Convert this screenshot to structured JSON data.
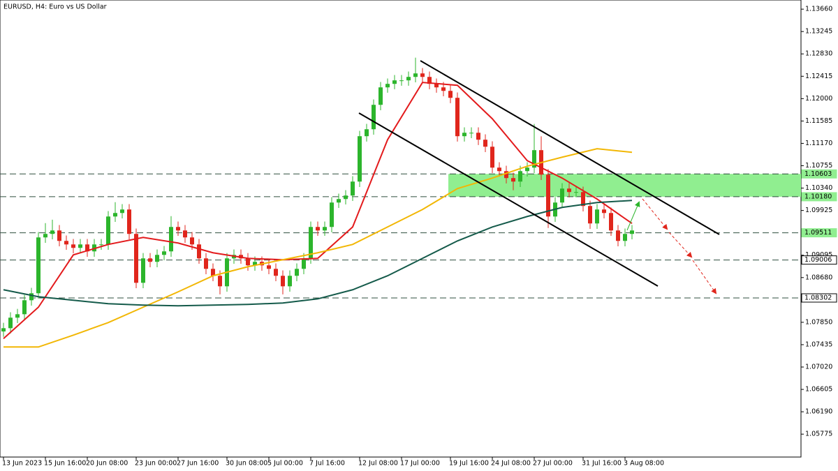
{
  "chart_data": {
    "type": "candlestick",
    "title": "EURUSD, H4:  Euro vs US Dollar",
    "categories": [
      "13 Jun 2023",
      null,
      null,
      null,
      null,
      null,
      "15 Jun 16:00",
      null,
      null,
      null,
      null,
      null,
      "20 Jun 08:00",
      null,
      null,
      null,
      null,
      null,
      null,
      "23 Jun 00:00",
      null,
      null,
      null,
      null,
      null,
      "27 Jun 16:00",
      null,
      null,
      null,
      null,
      null,
      null,
      "30 Jun 08:00",
      null,
      null,
      null,
      null,
      null,
      "5 Jul 00:00",
      null,
      null,
      null,
      null,
      null,
      "7 Jul 16:00",
      null,
      null,
      null,
      null,
      null,
      null,
      "12 Jul 08:00",
      null,
      null,
      null,
      null,
      null,
      "17 Jul 00:00",
      null,
      null,
      null,
      null,
      null,
      null,
      "19 Jul 16:00",
      null,
      null,
      null,
      null,
      null,
      "24 Jul 08:00",
      null,
      null,
      null,
      null,
      null,
      "27 Jul 00:00",
      null,
      null,
      null,
      null,
      null,
      null,
      "31 Jul 16:00",
      null,
      null,
      null,
      null,
      null,
      "3 Aug 08:00",
      null
    ],
    "ohlc": [
      [
        1.0768,
        1.07841,
        1.0758,
        1.07741
      ],
      [
        1.07741,
        1.08036,
        1.07641,
        1.07936
      ],
      [
        1.07936,
        1.081,
        1.07836,
        1.08
      ],
      [
        1.08,
        1.08359,
        1.079,
        1.08259
      ],
      [
        1.08259,
        1.08489,
        1.08159,
        1.08389
      ],
      [
        1.08389,
        1.09525,
        1.08289,
        1.09425
      ],
      [
        1.09425,
        1.0969,
        1.09325,
        1.0949
      ],
      [
        1.0949,
        1.09754,
        1.0939,
        1.09554
      ],
      [
        1.09554,
        1.09654,
        1.0926,
        1.0936
      ],
      [
        1.0936,
        1.0946,
        1.09195,
        1.09295
      ],
      [
        1.09295,
        1.09395,
        1.09131,
        1.09231
      ],
      [
        1.09231,
        1.09395,
        1.09131,
        1.09295
      ],
      [
        1.09295,
        1.09395,
        1.09066,
        1.09166
      ],
      [
        1.09166,
        1.09395,
        1.09066,
        1.09295
      ],
      [
        1.09295,
        1.09395,
        1.09195,
        1.09295
      ],
      [
        1.09295,
        1.09913,
        1.09195,
        1.09813
      ],
      [
        1.09813,
        1.10078,
        1.09713,
        1.09878
      ],
      [
        1.09878,
        1.10043,
        1.09778,
        1.09943
      ],
      [
        1.09943,
        1.10043,
        1.0939,
        1.0949
      ],
      [
        1.0949,
        1.0959,
        1.08483,
        1.08583
      ],
      [
        1.08583,
        1.09136,
        1.08483,
        1.09036
      ],
      [
        1.09036,
        1.09136,
        1.08872,
        1.08972
      ],
      [
        1.08972,
        1.09201,
        1.08872,
        1.09101
      ],
      [
        1.09101,
        1.09266,
        1.09001,
        1.09166
      ],
      [
        1.09166,
        1.09819,
        1.09066,
        1.09619
      ],
      [
        1.09619,
        1.09719,
        1.09454,
        1.09554
      ],
      [
        1.09554,
        1.09654,
        1.09325,
        1.09425
      ],
      [
        1.09425,
        1.09525,
        1.09195,
        1.09295
      ],
      [
        1.09295,
        1.09395,
        1.08936,
        1.09036
      ],
      [
        1.09036,
        1.09136,
        1.08742,
        1.08842
      ],
      [
        1.08842,
        1.08942,
        1.08613,
        1.08713
      ],
      [
        1.08713,
        1.08813,
        1.08368,
        1.08518
      ],
      [
        1.08518,
        1.09136,
        1.08418,
        1.09036
      ],
      [
        1.09036,
        1.09201,
        1.08936,
        1.09101
      ],
      [
        1.09101,
        1.09201,
        1.08936,
        1.09036
      ],
      [
        1.09036,
        1.09136,
        1.08807,
        1.08907
      ],
      [
        1.08907,
        1.09072,
        1.08807,
        1.08972
      ],
      [
        1.08972,
        1.09072,
        1.08807,
        1.08907
      ],
      [
        1.08907,
        1.09007,
        1.08742,
        1.08842
      ],
      [
        1.08842,
        1.08942,
        1.08613,
        1.08713
      ],
      [
        1.08713,
        1.08813,
        1.08368,
        1.08518
      ],
      [
        1.08518,
        1.08813,
        1.08418,
        1.08713
      ],
      [
        1.08713,
        1.08942,
        1.08613,
        1.08842
      ],
      [
        1.08842,
        1.09136,
        1.08742,
        1.09036
      ],
      [
        1.09036,
        1.09719,
        1.08936,
        1.09619
      ],
      [
        1.09619,
        1.09719,
        1.09454,
        1.09554
      ],
      [
        1.09554,
        1.09719,
        1.09454,
        1.09619
      ],
      [
        1.09619,
        1.10172,
        1.09519,
        1.10072
      ],
      [
        1.10072,
        1.10237,
        1.09972,
        1.10137
      ],
      [
        1.10137,
        1.10302,
        1.10037,
        1.10202
      ],
      [
        1.10202,
        1.10561,
        1.10102,
        1.10461
      ],
      [
        1.10461,
        1.11403,
        1.10361,
        1.11303
      ],
      [
        1.11303,
        1.11532,
        1.11203,
        1.11432
      ],
      [
        1.11432,
        1.11985,
        1.11332,
        1.11885
      ],
      [
        1.11885,
        1.12309,
        1.11785,
        1.12209
      ],
      [
        1.12209,
        1.12374,
        1.12109,
        1.12274
      ],
      [
        1.12274,
        1.12439,
        1.12174,
        1.12339
      ],
      [
        1.12339,
        1.12439,
        1.12239,
        1.12339
      ],
      [
        1.12339,
        1.12503,
        1.12239,
        1.12403
      ],
      [
        1.12403,
        1.1276,
        1.12303,
        1.12468
      ],
      [
        1.12468,
        1.12568,
        1.12303,
        1.12403
      ],
      [
        1.12403,
        1.12503,
        1.12174,
        1.12274
      ],
      [
        1.12274,
        1.12374,
        1.12109,
        1.12209
      ],
      [
        1.12209,
        1.12309,
        1.12044,
        1.12144
      ],
      [
        1.12144,
        1.12244,
        1.11915,
        1.12015
      ],
      [
        1.12015,
        1.12115,
        1.11203,
        1.11303
      ],
      [
        1.11303,
        1.11467,
        1.11203,
        1.11367
      ],
      [
        1.11367,
        1.11467,
        1.11267,
        1.11367
      ],
      [
        1.11367,
        1.11467,
        1.11138,
        1.11238
      ],
      [
        1.11238,
        1.11338,
        1.11008,
        1.11108
      ],
      [
        1.11108,
        1.11208,
        1.1062,
        1.1072
      ],
      [
        1.1072,
        1.1082,
        1.10555,
        1.10655
      ],
      [
        1.10655,
        1.10755,
        1.10426,
        1.10526
      ],
      [
        1.10526,
        1.10626,
        1.103,
        1.10461
      ],
      [
        1.10461,
        1.10755,
        1.10361,
        1.10655
      ],
      [
        1.10655,
        1.1082,
        1.10555,
        1.1072
      ],
      [
        1.1072,
        1.1153,
        1.1062,
        1.11044
      ],
      [
        1.11044,
        1.113,
        1.1049,
        1.1059
      ],
      [
        1.1059,
        1.1069,
        1.096,
        1.09813
      ],
      [
        1.09813,
        1.10172,
        1.09713,
        1.10072
      ],
      [
        1.10072,
        1.10431,
        1.09972,
        1.10331
      ],
      [
        1.10331,
        1.10431,
        1.10167,
        1.10267
      ],
      [
        1.10267,
        1.10367,
        1.10167,
        1.10267
      ],
      [
        1.10267,
        1.10367,
        1.09908,
        1.10008
      ],
      [
        1.10008,
        1.10108,
        1.09584,
        1.09684
      ],
      [
        1.09684,
        1.10043,
        1.09584,
        1.09943
      ],
      [
        1.09943,
        1.10043,
        1.09778,
        1.09878
      ],
      [
        1.09878,
        1.09978,
        1.09454,
        1.09554
      ],
      [
        1.09554,
        1.09654,
        1.0926,
        1.0936
      ],
      [
        1.0936,
        1.0959,
        1.0926,
        1.0949
      ],
      [
        1.0949,
        1.09654,
        1.0939,
        1.09554
      ]
    ],
    "up_color": "#2cb52c",
    "down_color": "#e0261c",
    "series": [
      {
        "color": "#e31a1c",
        "x": [
          0,
          5,
          10,
          15,
          20,
          25,
          30,
          35,
          40,
          45,
          50,
          55,
          60,
          65,
          70,
          75,
          80,
          85,
          90
        ],
        "values": [
          1.07547,
          1.0813,
          1.09101,
          1.09295,
          1.09425,
          1.09321,
          1.0914,
          1.09036,
          1.09011,
          1.09036,
          1.09619,
          1.11238,
          1.123,
          1.12248,
          1.11626,
          1.10849,
          1.10526,
          1.10137,
          1.09684
        ]
      },
      {
        "color": "#f2b705",
        "x": [
          0,
          5,
          10,
          15,
          20,
          25,
          30,
          35,
          40,
          45,
          50,
          55,
          60,
          65,
          70,
          75,
          80,
          85,
          90
        ],
        "values": [
          1.07392,
          1.07392,
          1.07612,
          1.07845,
          1.0813,
          1.08415,
          1.08713,
          1.08881,
          1.09011,
          1.0914,
          1.09295,
          1.09619,
          1.09943,
          1.10331,
          1.10526,
          1.10746,
          1.10914,
          1.1107,
          1.11005
        ]
      },
      {
        "color": "#145a4a",
        "x": [
          0,
          5,
          10,
          15,
          20,
          25,
          30,
          35,
          40,
          45,
          50,
          55,
          60,
          65,
          70,
          75,
          80,
          85,
          90
        ],
        "values": [
          1.08454,
          1.08324,
          1.08259,
          1.08195,
          1.08169,
          1.08156,
          1.08169,
          1.08182,
          1.08208,
          1.08285,
          1.08454,
          1.08713,
          1.09036,
          1.0936,
          1.09619,
          1.09813,
          1.09982,
          1.10072,
          1.10111
        ]
      }
    ],
    "levels": [
      1.10603,
      {
        "value": 1.1018,
        "label": "1.10180"
      },
      1.09511,
      1.09006,
      1.08302
    ],
    "level_colors": [
      "#90ee90",
      "#90ee90",
      "#90ee90",
      "#ffffff",
      "#ffffff"
    ],
    "zone_color": "#90ee90",
    "ylim": [
      1.0535,
      1.1383
    ],
    "yticks": [
      {
        "value": 1.1366,
        "label": "1.13660"
      },
      1.13245,
      {
        "value": 1.1283,
        "label": "1.12830"
      },
      1.12415,
      {
        "value": 1.12,
        "label": "1.12000"
      },
      1.11585,
      {
        "value": 1.1117,
        "label": "1.11170"
      },
      1.10755,
      {
        "value": 1.1034,
        "label": "1.10340"
      },
      1.09925,
      1.09095,
      {
        "value": 1.0868,
        "label": "1.08680"
      },
      {
        "value": 1.0785,
        "label": "1.07850"
      },
      1.07435,
      {
        "value": 1.0702,
        "label": "1.07020"
      },
      1.06605,
      {
        "value": 1.0619,
        "label": "1.06190"
      },
      1.05775
    ]
  }
}
